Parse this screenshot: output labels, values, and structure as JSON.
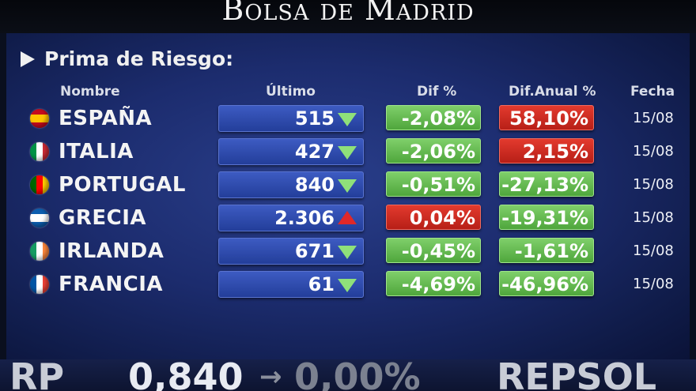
{
  "header": {
    "title": "Bolsa de Madrid"
  },
  "section": {
    "title": "Prima de Riesgo:"
  },
  "columns": {
    "nombre": "Nombre",
    "ultimo": "Último",
    "dif": "Dif %",
    "anual": "Dif.Anual %",
    "fecha": "Fecha"
  },
  "rows": [
    {
      "country": "ESPAÑA",
      "ultimo": "515",
      "trend": "down",
      "dif": "-2,08%",
      "dif_color": "green",
      "anual": "58,10%",
      "anual_color": "red",
      "fecha": "15/08",
      "flag": [
        "#c60b1e",
        "#ffc400",
        "#c60b1e"
      ]
    },
    {
      "country": "ITALIA",
      "ultimo": "427",
      "trend": "down",
      "dif": "-2,06%",
      "dif_color": "green",
      "anual": "2,15%",
      "anual_color": "red",
      "fecha": "15/08",
      "flag": [
        "#009246",
        "#ffffff",
        "#ce2b37"
      ]
    },
    {
      "country": "PORTUGAL",
      "ultimo": "840",
      "trend": "down",
      "dif": "-0,51%",
      "dif_color": "green",
      "anual": "-27,13%",
      "anual_color": "green",
      "fecha": "15/08",
      "flag": [
        "#006600",
        "#ff0000",
        "#ffcc00"
      ]
    },
    {
      "country": "GRECIA",
      "ultimo": "2.306",
      "trend": "up",
      "dif": "0,04%",
      "dif_color": "red",
      "anual": "-19,31%",
      "anual_color": "green",
      "fecha": "15/08",
      "flag": [
        "#0d5eaf",
        "#ffffff",
        "#0d5eaf"
      ]
    },
    {
      "country": "IRLANDA",
      "ultimo": "671",
      "trend": "down",
      "dif": "-0,45%",
      "dif_color": "green",
      "anual": "-1,61%",
      "anual_color": "green",
      "fecha": "15/08",
      "flag": [
        "#169b62",
        "#ffffff",
        "#ff883e"
      ]
    },
    {
      "country": "FRANCIA",
      "ultimo": "61",
      "trend": "down",
      "dif": "-4,69%",
      "dif_color": "green",
      "anual": "-46,96%",
      "anual_color": "green",
      "fecha": "15/08",
      "flag": [
        "#0055a4",
        "#ffffff",
        "#ef4135"
      ]
    }
  ],
  "ticker": {
    "left": "RP",
    "value": "0,840",
    "arrow": "→",
    "change": "0,00%",
    "name": "REPSOL"
  }
}
